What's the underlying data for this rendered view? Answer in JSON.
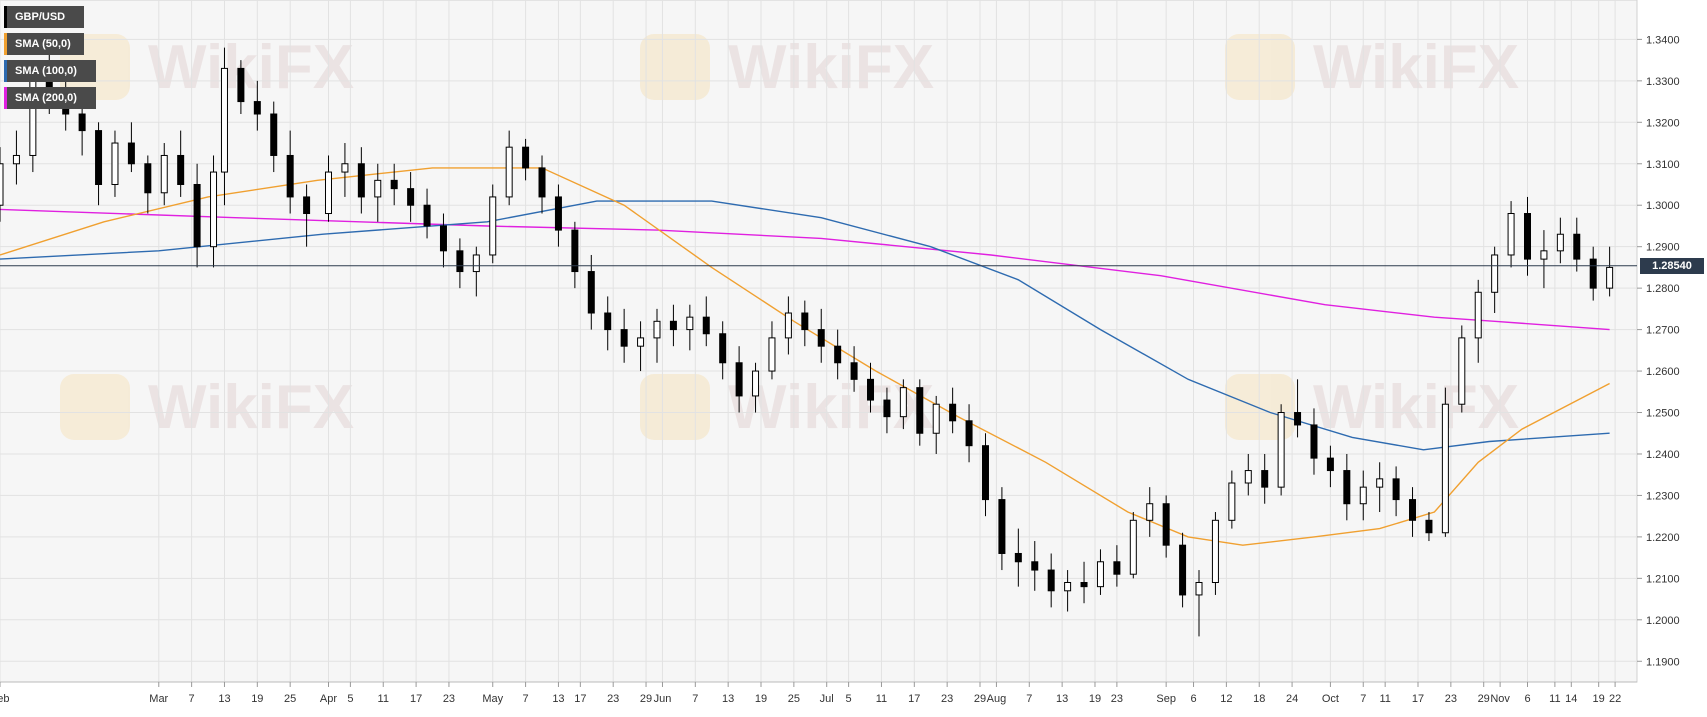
{
  "chart_data": {
    "type": "candlestick",
    "symbol": "GBP/USD",
    "last_price": "1.28540",
    "ylim": [
      1.185,
      1.3495
    ],
    "y_ticks": [
      "1.1900",
      "1.2000",
      "1.2100",
      "1.2200",
      "1.2300",
      "1.2400",
      "1.2500",
      "1.2600",
      "1.2700",
      "1.2800",
      "1.2900",
      "1.3000",
      "1.3100",
      "1.3200",
      "1.3300",
      "1.3400"
    ],
    "x_ticks": [
      "Feb",
      "Mar",
      "7",
      "13",
      "19",
      "25",
      "Apr",
      "5",
      "11",
      "17",
      "23",
      "May",
      "7",
      "13",
      "17",
      "23",
      "29",
      "Jun",
      "7",
      "13",
      "19",
      "25",
      "Jul",
      "5",
      "11",
      "17",
      "23",
      "29",
      "Aug",
      "7",
      "13",
      "19",
      "23",
      "Sep",
      "6",
      "12",
      "18",
      "24",
      "Oct",
      "7",
      "11",
      "17",
      "23",
      "29",
      "Nov",
      "6",
      "11",
      "14",
      "19",
      "22"
    ],
    "x_tick_dates": [
      "2020-02-01",
      "2020-03-01",
      "2020-03-07",
      "2020-03-13",
      "2020-03-19",
      "2020-03-25",
      "2020-04-01",
      "2020-04-05",
      "2020-04-11",
      "2020-04-17",
      "2020-04-23",
      "2020-05-01",
      "2020-05-07",
      "2020-05-13",
      "2020-05-17",
      "2020-05-23",
      "2020-05-29",
      "2020-06-01",
      "2020-06-07",
      "2020-06-13",
      "2020-06-19",
      "2020-06-25",
      "2020-07-01",
      "2020-07-05",
      "2020-07-11",
      "2020-07-17",
      "2020-07-23",
      "2020-07-29",
      "2020-08-01",
      "2020-08-07",
      "2020-08-13",
      "2020-08-19",
      "2020-08-23",
      "2020-09-01",
      "2020-09-06",
      "2020-09-12",
      "2020-09-18",
      "2020-09-24",
      "2020-10-01",
      "2020-10-07",
      "2020-10-11",
      "2020-10-17",
      "2020-10-23",
      "2020-10-29",
      "2020-11-01",
      "2020-11-06",
      "2020-11-11",
      "2020-11-14",
      "2020-11-19",
      "2020-11-22"
    ],
    "grid": true,
    "watermark": "WikiFX",
    "legend": [
      {
        "name": "GBP/USD",
        "color": "#000000"
      },
      {
        "name": "SMA (50,0)",
        "color": "#f0a030"
      },
      {
        "name": "SMA (100,0)",
        "color": "#2e6bb0"
      },
      {
        "name": "SMA (200,0)",
        "color": "#e020e0"
      }
    ],
    "candles": [
      [
        "2020-02-01",
        1.3,
        1.314,
        1.296,
        1.31
      ],
      [
        "2020-02-04",
        1.31,
        1.318,
        1.305,
        1.312
      ],
      [
        "2020-02-07",
        1.312,
        1.335,
        1.308,
        1.33
      ],
      [
        "2020-02-10",
        1.33,
        1.338,
        1.322,
        1.326
      ],
      [
        "2020-02-13",
        1.326,
        1.33,
        1.318,
        1.322
      ],
      [
        "2020-02-16",
        1.322,
        1.325,
        1.312,
        1.318
      ],
      [
        "2020-02-19",
        1.318,
        1.32,
        1.3,
        1.305
      ],
      [
        "2020-02-22",
        1.305,
        1.318,
        1.302,
        1.315
      ],
      [
        "2020-02-25",
        1.315,
        1.32,
        1.308,
        1.31
      ],
      [
        "2020-02-28",
        1.31,
        1.312,
        1.298,
        1.303
      ],
      [
        "2020-03-02",
        1.303,
        1.315,
        1.3,
        1.312
      ],
      [
        "2020-03-05",
        1.312,
        1.318,
        1.302,
        1.305
      ],
      [
        "2020-03-08",
        1.305,
        1.31,
        1.285,
        1.29
      ],
      [
        "2020-03-11",
        1.29,
        1.312,
        1.285,
        1.308
      ],
      [
        "2020-03-13",
        1.308,
        1.338,
        1.3,
        1.333
      ],
      [
        "2020-03-16",
        1.333,
        1.335,
        1.322,
        1.325
      ],
      [
        "2020-03-19",
        1.325,
        1.33,
        1.318,
        1.322
      ],
      [
        "2020-03-22",
        1.322,
        1.325,
        1.308,
        1.312
      ],
      [
        "2020-03-25",
        1.312,
        1.318,
        1.298,
        1.302
      ],
      [
        "2020-03-28",
        1.302,
        1.305,
        1.29,
        1.298
      ],
      [
        "2020-04-01",
        1.298,
        1.312,
        1.296,
        1.308
      ],
      [
        "2020-04-04",
        1.308,
        1.315,
        1.302,
        1.31
      ],
      [
        "2020-04-07",
        1.31,
        1.314,
        1.298,
        1.302
      ],
      [
        "2020-04-10",
        1.302,
        1.31,
        1.296,
        1.306
      ],
      [
        "2020-04-13",
        1.306,
        1.31,
        1.3,
        1.304
      ],
      [
        "2020-04-16",
        1.304,
        1.308,
        1.296,
        1.3
      ],
      [
        "2020-04-19",
        1.3,
        1.304,
        1.292,
        1.295
      ],
      [
        "2020-04-22",
        1.295,
        1.298,
        1.285,
        1.289
      ],
      [
        "2020-04-25",
        1.289,
        1.292,
        1.28,
        1.284
      ],
      [
        "2020-04-28",
        1.284,
        1.29,
        1.278,
        1.288
      ],
      [
        "2020-05-01",
        1.288,
        1.305,
        1.286,
        1.302
      ],
      [
        "2020-05-04",
        1.302,
        1.318,
        1.3,
        1.314
      ],
      [
        "2020-05-07",
        1.314,
        1.316,
        1.306,
        1.309
      ],
      [
        "2020-05-10",
        1.309,
        1.312,
        1.298,
        1.302
      ],
      [
        "2020-05-13",
        1.302,
        1.305,
        1.29,
        1.294
      ],
      [
        "2020-05-16",
        1.294,
        1.296,
        1.28,
        1.284
      ],
      [
        "2020-05-19",
        1.284,
        1.288,
        1.27,
        1.274
      ],
      [
        "2020-05-22",
        1.274,
        1.278,
        1.265,
        1.27
      ],
      [
        "2020-05-25",
        1.27,
        1.275,
        1.262,
        1.266
      ],
      [
        "2020-05-28",
        1.266,
        1.272,
        1.26,
        1.268
      ],
      [
        "2020-05-31",
        1.268,
        1.275,
        1.262,
        1.272
      ],
      [
        "2020-06-03",
        1.272,
        1.276,
        1.266,
        1.27
      ],
      [
        "2020-06-06",
        1.27,
        1.276,
        1.265,
        1.273
      ],
      [
        "2020-06-09",
        1.273,
        1.278,
        1.266,
        1.269
      ],
      [
        "2020-06-12",
        1.269,
        1.272,
        1.258,
        1.262
      ],
      [
        "2020-06-15",
        1.262,
        1.266,
        1.25,
        1.254
      ],
      [
        "2020-06-18",
        1.254,
        1.262,
        1.25,
        1.26
      ],
      [
        "2020-06-21",
        1.26,
        1.272,
        1.258,
        1.268
      ],
      [
        "2020-06-24",
        1.268,
        1.278,
        1.264,
        1.274
      ],
      [
        "2020-06-27",
        1.274,
        1.277,
        1.266,
        1.27
      ],
      [
        "2020-06-30",
        1.27,
        1.275,
        1.262,
        1.266
      ],
      [
        "2020-07-03",
        1.266,
        1.27,
        1.258,
        1.262
      ],
      [
        "2020-07-06",
        1.262,
        1.266,
        1.255,
        1.258
      ],
      [
        "2020-07-09",
        1.258,
        1.262,
        1.25,
        1.253
      ],
      [
        "2020-07-12",
        1.253,
        1.256,
        1.245,
        1.249
      ],
      [
        "2020-07-15",
        1.249,
        1.258,
        1.246,
        1.256
      ],
      [
        "2020-07-18",
        1.256,
        1.258,
        1.242,
        1.245
      ],
      [
        "2020-07-21",
        1.245,
        1.254,
        1.24,
        1.252
      ],
      [
        "2020-07-24",
        1.252,
        1.256,
        1.245,
        1.248
      ],
      [
        "2020-07-27",
        1.248,
        1.252,
        1.238,
        1.242
      ],
      [
        "2020-07-30",
        1.242,
        1.245,
        1.225,
        1.229
      ],
      [
        "2020-08-02",
        1.229,
        1.232,
        1.212,
        1.216
      ],
      [
        "2020-08-05",
        1.216,
        1.222,
        1.208,
        1.214
      ],
      [
        "2020-08-08",
        1.214,
        1.219,
        1.207,
        1.212
      ],
      [
        "2020-08-11",
        1.212,
        1.216,
        1.203,
        1.207
      ],
      [
        "2020-08-14",
        1.207,
        1.212,
        1.202,
        1.209
      ],
      [
        "2020-08-17",
        1.209,
        1.214,
        1.204,
        1.208
      ],
      [
        "2020-08-20",
        1.208,
        1.217,
        1.206,
        1.214
      ],
      [
        "2020-08-23",
        1.214,
        1.218,
        1.208,
        1.211
      ],
      [
        "2020-08-26",
        1.211,
        1.226,
        1.21,
        1.224
      ],
      [
        "2020-08-29",
        1.224,
        1.232,
        1.22,
        1.228
      ],
      [
        "2020-09-01",
        1.228,
        1.23,
        1.215,
        1.218
      ],
      [
        "2020-09-04",
        1.218,
        1.221,
        1.203,
        1.206
      ],
      [
        "2020-09-07",
        1.206,
        1.212,
        1.196,
        1.209
      ],
      [
        "2020-09-10",
        1.209,
        1.226,
        1.206,
        1.224
      ],
      [
        "2020-09-13",
        1.224,
        1.236,
        1.222,
        1.233
      ],
      [
        "2020-09-16",
        1.233,
        1.24,
        1.23,
        1.236
      ],
      [
        "2020-09-19",
        1.236,
        1.24,
        1.228,
        1.232
      ],
      [
        "2020-09-22",
        1.232,
        1.252,
        1.23,
        1.25
      ],
      [
        "2020-09-25",
        1.25,
        1.258,
        1.244,
        1.247
      ],
      [
        "2020-09-28",
        1.247,
        1.251,
        1.235,
        1.239
      ],
      [
        "2020-10-01",
        1.239,
        1.242,
        1.232,
        1.236
      ],
      [
        "2020-10-04",
        1.236,
        1.24,
        1.224,
        1.228
      ],
      [
        "2020-10-07",
        1.228,
        1.236,
        1.224,
        1.232
      ],
      [
        "2020-10-10",
        1.232,
        1.238,
        1.226,
        1.234
      ],
      [
        "2020-10-13",
        1.234,
        1.237,
        1.225,
        1.229
      ],
      [
        "2020-10-16",
        1.229,
        1.232,
        1.22,
        1.224
      ],
      [
        "2020-10-19",
        1.224,
        1.226,
        1.219,
        1.221
      ],
      [
        "2020-10-22",
        1.221,
        1.256,
        1.22,
        1.252
      ],
      [
        "2020-10-25",
        1.252,
        1.271,
        1.25,
        1.268
      ],
      [
        "2020-10-28",
        1.268,
        1.282,
        1.262,
        1.279
      ],
      [
        "2020-10-31",
        1.279,
        1.29,
        1.274,
        1.288
      ],
      [
        "2020-11-03",
        1.288,
        1.301,
        1.285,
        1.298
      ],
      [
        "2020-11-06",
        1.298,
        1.302,
        1.283,
        1.287
      ],
      [
        "2020-11-09",
        1.287,
        1.294,
        1.28,
        1.289
      ],
      [
        "2020-11-12",
        1.289,
        1.297,
        1.286,
        1.293
      ],
      [
        "2020-11-15",
        1.293,
        1.297,
        1.284,
        1.287
      ],
      [
        "2020-11-18",
        1.287,
        1.29,
        1.277,
        1.28
      ],
      [
        "2020-11-21",
        1.28,
        1.29,
        1.278,
        1.285
      ]
    ],
    "sma50": [
      [
        "2020-02-01",
        1.288
      ],
      [
        "2020-02-20",
        1.296
      ],
      [
        "2020-03-10",
        1.302
      ],
      [
        "2020-03-30",
        1.306
      ],
      [
        "2020-04-20",
        1.309
      ],
      [
        "2020-05-10",
        1.309
      ],
      [
        "2020-05-25",
        1.3
      ],
      [
        "2020-06-10",
        1.285
      ],
      [
        "2020-06-25",
        1.272
      ],
      [
        "2020-07-10",
        1.26
      ],
      [
        "2020-07-25",
        1.249
      ],
      [
        "2020-08-10",
        1.238
      ],
      [
        "2020-08-25",
        1.226
      ],
      [
        "2020-09-05",
        1.22
      ],
      [
        "2020-09-15",
        1.218
      ],
      [
        "2020-09-28",
        1.22
      ],
      [
        "2020-10-10",
        1.222
      ],
      [
        "2020-10-20",
        1.226
      ],
      [
        "2020-10-28",
        1.238
      ],
      [
        "2020-11-05",
        1.246
      ],
      [
        "2020-11-21",
        1.257
      ]
    ],
    "sma100": [
      [
        "2020-02-01",
        1.287
      ],
      [
        "2020-03-01",
        1.289
      ],
      [
        "2020-03-31",
        1.293
      ],
      [
        "2020-04-30",
        1.296
      ],
      [
        "2020-05-20",
        1.301
      ],
      [
        "2020-06-10",
        1.301
      ],
      [
        "2020-06-30",
        1.297
      ],
      [
        "2020-07-20",
        1.29
      ],
      [
        "2020-08-05",
        1.282
      ],
      [
        "2020-08-20",
        1.27
      ],
      [
        "2020-09-05",
        1.258
      ],
      [
        "2020-09-20",
        1.25
      ],
      [
        "2020-10-05",
        1.244
      ],
      [
        "2020-10-18",
        1.241
      ],
      [
        "2020-10-30",
        1.243
      ],
      [
        "2020-11-21",
        1.245
      ]
    ],
    "sma200": [
      [
        "2020-02-01",
        1.299
      ],
      [
        "2020-03-15",
        1.297
      ],
      [
        "2020-04-30",
        1.295
      ],
      [
        "2020-05-31",
        1.294
      ],
      [
        "2020-06-30",
        1.292
      ],
      [
        "2020-07-31",
        1.288
      ],
      [
        "2020-08-31",
        1.283
      ],
      [
        "2020-09-30",
        1.276
      ],
      [
        "2020-10-20",
        1.273
      ],
      [
        "2020-10-31",
        1.272
      ],
      [
        "2020-11-21",
        1.27
      ]
    ]
  }
}
